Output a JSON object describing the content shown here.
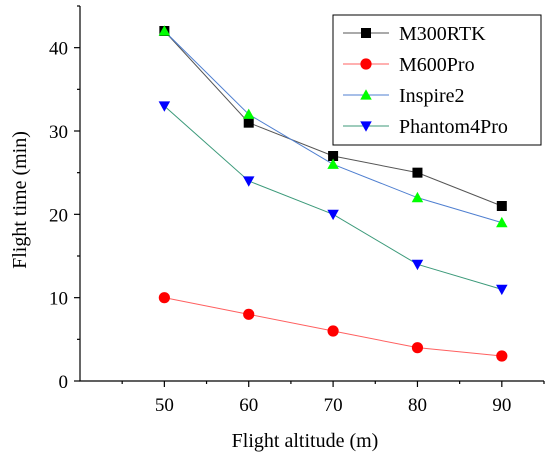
{
  "chart_data": {
    "type": "line",
    "xlabel": "Flight altitude (m)",
    "ylabel": "Flight time (min)",
    "x": [
      50,
      60,
      70,
      80,
      90
    ],
    "xlim": [
      40,
      95
    ],
    "ylim": [
      0,
      45
    ],
    "xticks": [
      50,
      60,
      70,
      80,
      90
    ],
    "yticks": [
      0,
      10,
      20,
      30,
      40
    ],
    "grid": false,
    "legend_position": "top-right",
    "series": [
      {
        "name": "M300RTK",
        "values": [
          42,
          31,
          27,
          25,
          21
        ],
        "line_color": "#555555",
        "marker_color": "#000000",
        "marker": "square"
      },
      {
        "name": "M600Pro",
        "values": [
          10,
          8,
          6,
          4,
          3
        ],
        "line_color": "#ff6060",
        "marker_color": "#ff0000",
        "marker": "circle"
      },
      {
        "name": "Inspire2",
        "values": [
          42,
          32,
          26,
          22,
          19
        ],
        "line_color": "#4f7fd0",
        "marker_color": "#00ff00",
        "marker": "triangle-up"
      },
      {
        "name": "Phantom4Pro",
        "values": [
          33,
          24,
          20,
          14,
          11
        ],
        "line_color": "#3c9a7a",
        "marker_color": "#0000ff",
        "marker": "triangle-down"
      }
    ]
  }
}
